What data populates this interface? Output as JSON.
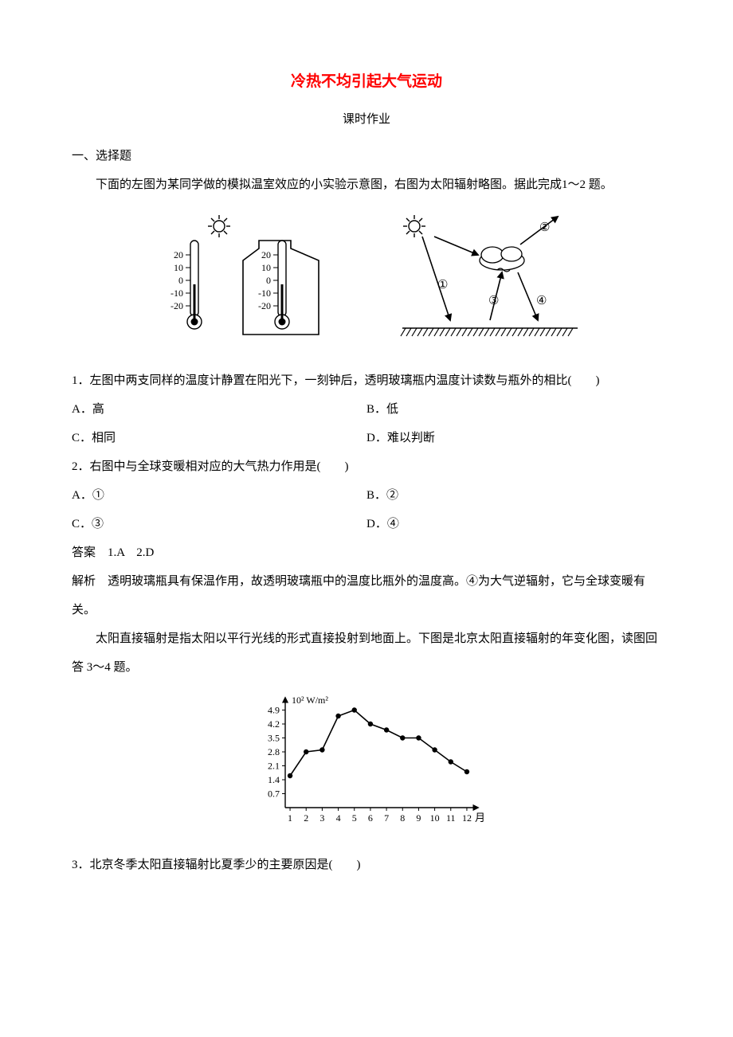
{
  "title": "冷热不均引起大气运动",
  "subtitle": "课时作业",
  "section1": "一、选择题",
  "intro1": "下面的左图为某同学做的模拟温室效应的小实验示意图，右图为太阳辐射略图。据此完成1～2 题。",
  "thermo": {
    "ticks": [
      "20",
      "10",
      "0",
      "-10",
      "-20"
    ]
  },
  "rays": {
    "labels": [
      "①",
      "②",
      "③",
      "④"
    ]
  },
  "q1": {
    "stem": "1．左图中两支同样的温度计静置在阳光下，一刻钟后，透明玻璃瓶内温度计读数与瓶外的相比(　　)",
    "A": "A．高",
    "B": "B．低",
    "C": "C．相同",
    "D": "D．难以判断"
  },
  "q2": {
    "stem": "2．右图中与全球变暖相对应的大气热力作用是(　　)",
    "A": "A．①",
    "B": "B．②",
    "C": "C．③",
    "D": "D．④"
  },
  "answers": "答案　1.A　2.D",
  "explain": "解析　透明玻璃瓶具有保温作用，故透明玻璃瓶中的温度比瓶外的温度高。④为大气逆辐射，它与全球变暖有关。",
  "intro2": "太阳直接辐射是指太阳以平行光线的形式直接投射到地面上。下图是北京太阳直接辐射的年变化图，读图回答 3～4 题。",
  "chart": {
    "type": "line",
    "y_unit": "10² W/m²",
    "x_label": "月",
    "y_ticks": [
      "0.7",
      "1.4",
      "2.1",
      "2.8",
      "3.5",
      "4.2",
      "4.9"
    ],
    "x_ticks": [
      "1",
      "2",
      "3",
      "4",
      "5",
      "6",
      "7",
      "8",
      "9",
      "10",
      "11",
      "12"
    ],
    "values": [
      1.6,
      2.8,
      2.9,
      4.6,
      4.9,
      4.2,
      3.9,
      3.5,
      3.5,
      2.9,
      2.3,
      1.8
    ],
    "colors": {
      "axis": "#000000",
      "line": "#000000",
      "marker": "#000000",
      "background": "#ffffff"
    },
    "marker_radius": 3.2,
    "line_width": 1.6,
    "ylim": [
      0,
      5.2
    ],
    "xlim": [
      0.5,
      12.5
    ]
  },
  "q3": {
    "stem": "3．北京冬季太阳直接辐射比夏季少的主要原因是(　　)"
  }
}
